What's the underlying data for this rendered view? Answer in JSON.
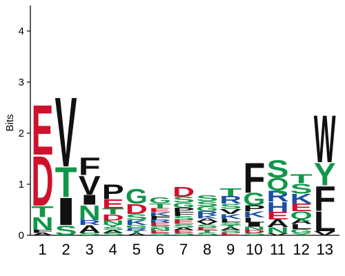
{
  "chart_data": {
    "type": "sequence-logo",
    "ylabel": "Bits",
    "ylim": [
      0,
      4.5
    ],
    "y_ticks": [
      "0",
      "1",
      "2",
      "3",
      "4"
    ],
    "x_ticks": [
      "1",
      "2",
      "3",
      "4",
      "5",
      "6",
      "7",
      "8",
      "9",
      "10",
      "11",
      "12",
      "13"
    ],
    "colors": {
      "acidic": "#d0102c",
      "polar": "#11974a",
      "basic": "#1b4fa1",
      "hydrophobic": "#111111"
    },
    "residue_classes": {
      "D": "acidic",
      "E": "acidic",
      "G": "polar",
      "S": "polar",
      "T": "polar",
      "Y": "polar",
      "C": "polar",
      "Q": "polar",
      "N": "polar",
      "K": "basic",
      "R": "basic",
      "H": "basic",
      "A": "hydrophobic",
      "V": "hydrophobic",
      "L": "hydrophobic",
      "I": "hydrophobic",
      "P": "hydrophobic",
      "W": "hydrophobic",
      "F": "hydrophobic",
      "M": "hydrophobic"
    },
    "positions": [
      {
        "position": "1",
        "letters": [
          {
            "letter": "A",
            "bits": 0.05
          },
          {
            "letter": "F",
            "bits": 0.06
          },
          {
            "letter": "N",
            "bits": 0.25
          },
          {
            "letter": "T",
            "bits": 0.22
          },
          {
            "letter": "D",
            "bits": 1.0
          },
          {
            "letter": "E",
            "bits": 1.0
          }
        ]
      },
      {
        "position": "2",
        "letters": [
          {
            "letter": "S",
            "bits": 0.2
          },
          {
            "letter": "I",
            "bits": 0.55
          },
          {
            "letter": "T",
            "bits": 0.6
          },
          {
            "letter": "V",
            "bits": 1.4
          }
        ]
      },
      {
        "position": "3",
        "letters": [
          {
            "letter": "S",
            "bits": 0.05
          },
          {
            "letter": "A",
            "bits": 0.15
          },
          {
            "letter": "R",
            "bits": 0.1
          },
          {
            "letter": "N",
            "bits": 0.3
          },
          {
            "letter": "I",
            "bits": 0.2
          },
          {
            "letter": "V",
            "bits": 0.38
          },
          {
            "letter": "F",
            "bits": 0.35
          }
        ]
      },
      {
        "position": "4",
        "letters": [
          {
            "letter": "S",
            "bits": 0.05
          },
          {
            "letter": "A",
            "bits": 0.05
          },
          {
            "letter": "S",
            "bits": 0.06
          },
          {
            "letter": "Y",
            "bits": 0.05
          },
          {
            "letter": "N",
            "bits": 0.08
          },
          {
            "letter": "D",
            "bits": 0.12
          },
          {
            "letter": "T",
            "bits": 0.12
          },
          {
            "letter": "E",
            "bits": 0.18
          },
          {
            "letter": "P",
            "bits": 0.3
          }
        ]
      },
      {
        "position": "5",
        "letters": [
          {
            "letter": "A",
            "bits": 0.04
          },
          {
            "letter": "T",
            "bits": 0.05
          },
          {
            "letter": "R",
            "bits": 0.05
          },
          {
            "letter": "G",
            "bits": 0.06
          },
          {
            "letter": "K",
            "bits": 0.1
          },
          {
            "letter": "S",
            "bits": 0.12
          },
          {
            "letter": "D",
            "bits": 0.2
          },
          {
            "letter": "G",
            "bits": 0.3
          }
        ]
      },
      {
        "position": "6",
        "letters": [
          {
            "letter": "S",
            "bits": 0.04
          },
          {
            "letter": "E",
            "bits": 0.05
          },
          {
            "letter": "N",
            "bits": 0.05
          },
          {
            "letter": "S",
            "bits": 0.05
          },
          {
            "letter": "E",
            "bits": 0.06
          },
          {
            "letter": "R",
            "bits": 0.06
          },
          {
            "letter": "F",
            "bits": 0.07
          },
          {
            "letter": "K",
            "bits": 0.07
          },
          {
            "letter": "E",
            "bits": 0.08
          },
          {
            "letter": "T",
            "bits": 0.1
          },
          {
            "letter": "G",
            "bits": 0.12
          }
        ]
      },
      {
        "position": "7",
        "letters": [
          {
            "letter": "S",
            "bits": 0.05
          },
          {
            "letter": "E",
            "bits": 0.05
          },
          {
            "letter": "A",
            "bits": 0.05
          },
          {
            "letter": "S",
            "bits": 0.07
          },
          {
            "letter": "E",
            "bits": 0.08
          },
          {
            "letter": "S",
            "bits": 0.08
          },
          {
            "letter": "F",
            "bits": 0.08
          },
          {
            "letter": "P",
            "bits": 0.08
          },
          {
            "letter": "G",
            "bits": 0.1
          },
          {
            "letter": "S",
            "bits": 0.12
          },
          {
            "letter": "D",
            "bits": 0.2
          }
        ]
      },
      {
        "position": "8",
        "letters": [
          {
            "letter": "S",
            "bits": 0.05
          },
          {
            "letter": "T",
            "bits": 0.05
          },
          {
            "letter": "E",
            "bits": 0.05
          },
          {
            "letter": "S",
            "bits": 0.06
          },
          {
            "letter": "V",
            "bits": 0.06
          },
          {
            "letter": "A",
            "bits": 0.06
          },
          {
            "letter": "K",
            "bits": 0.06
          },
          {
            "letter": "R",
            "bits": 0.08
          },
          {
            "letter": "G",
            "bits": 0.1
          },
          {
            "letter": "S",
            "bits": 0.1
          },
          {
            "letter": "S",
            "bits": 0.12
          }
        ]
      },
      {
        "position": "9",
        "letters": [
          {
            "letter": "E",
            "bits": 0.05
          },
          {
            "letter": "S",
            "bits": 0.05
          },
          {
            "letter": "A",
            "bits": 0.05
          },
          {
            "letter": "T",
            "bits": 0.05
          },
          {
            "letter": "S",
            "bits": 0.06
          },
          {
            "letter": "L",
            "bits": 0.06
          },
          {
            "letter": "K",
            "bits": 0.1
          },
          {
            "letter": "V",
            "bits": 0.1
          },
          {
            "letter": "S",
            "bits": 0.1
          },
          {
            "letter": "R",
            "bits": 0.15
          },
          {
            "letter": "T",
            "bits": 0.15
          }
        ]
      },
      {
        "position": "10",
        "letters": [
          {
            "letter": "S",
            "bits": 0.05
          },
          {
            "letter": "D",
            "bits": 0.06
          },
          {
            "letter": "N",
            "bits": 0.06
          },
          {
            "letter": "I",
            "bits": 0.08
          },
          {
            "letter": "L",
            "bits": 0.1
          },
          {
            "letter": "K",
            "bits": 0.12
          },
          {
            "letter": "P",
            "bits": 0.12
          },
          {
            "letter": "G",
            "bits": 0.25
          },
          {
            "letter": "F",
            "bits": 0.6
          }
        ]
      },
      {
        "position": "11",
        "letters": [
          {
            "letter": "V",
            "bits": 0.04
          },
          {
            "letter": "N",
            "bits": 0.12
          },
          {
            "letter": "A",
            "bits": 0.15
          },
          {
            "letter": "E",
            "bits": 0.15
          },
          {
            "letter": "H",
            "bits": 0.2
          },
          {
            "letter": "R",
            "bits": 0.22
          },
          {
            "letter": "Q",
            "bits": 0.25
          },
          {
            "letter": "S",
            "bits": 0.35
          }
        ]
      },
      {
        "position": "12",
        "letters": [
          {
            "letter": "Y",
            "bits": 0.04
          },
          {
            "letter": "G",
            "bits": 0.08
          },
          {
            "letter": "L",
            "bits": 0.1
          },
          {
            "letter": "A",
            "bits": 0.1
          },
          {
            "letter": "Q",
            "bits": 0.15
          },
          {
            "letter": "E",
            "bits": 0.15
          },
          {
            "letter": "K",
            "bits": 0.2
          },
          {
            "letter": "S",
            "bits": 0.2
          },
          {
            "letter": "T",
            "bits": 0.18
          }
        ]
      },
      {
        "position": "13",
        "letters": [
          {
            "letter": "V",
            "bits": 0.08
          },
          {
            "letter": "L",
            "bits": 0.4
          },
          {
            "letter": "F",
            "bits": 0.5
          },
          {
            "letter": "Y",
            "bits": 0.45
          },
          {
            "letter": "W",
            "bits": 0.95
          }
        ]
      }
    ]
  }
}
